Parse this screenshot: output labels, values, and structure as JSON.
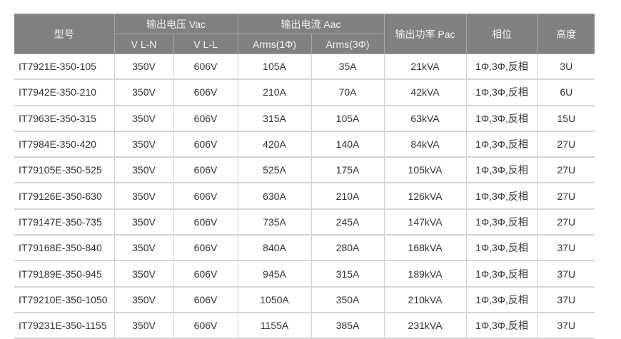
{
  "header": {
    "model": "型号",
    "voltage_group": "输出电压 Vac",
    "current_group": "输出电流 Aac",
    "power": "输出功率 Pac",
    "phase": "相位",
    "height": "高度",
    "v_ln": "V L-N",
    "v_ll": "V L-L",
    "a_1p": "Arms(1Φ)",
    "a_3p": "Arms(3Φ)"
  },
  "rows": [
    [
      "IT7921E-350-105",
      "350V",
      "606V",
      "105A",
      "35A",
      "21kVA",
      "1Φ,3Φ,反相",
      "3U"
    ],
    [
      "IT7942E-350-210",
      "350V",
      "606V",
      "210A",
      "70A",
      "42kVA",
      "1Φ,3Φ,反相",
      "6U"
    ],
    [
      "IT7963E-350-315",
      "350V",
      "606V",
      "315A",
      "105A",
      "63kVA",
      "1Φ,3Φ,反相",
      "15U"
    ],
    [
      "IT7984E-350-420",
      "350V",
      "606V",
      "420A",
      "140A",
      "84kVA",
      "1Φ,3Φ,反相",
      "27U"
    ],
    [
      "IT79105E-350-525",
      "350V",
      "606V",
      "525A",
      "175A",
      "105kVA",
      "1Φ,3Φ,反相",
      "27U"
    ],
    [
      "IT79126E-350-630",
      "350V",
      "606V",
      "630A",
      "210A",
      "126kVA",
      "1Φ,3Φ,反相",
      "27U"
    ],
    [
      "IT79147E-350-735",
      "350V",
      "606V",
      "735A",
      "245A",
      "147kVA",
      "1Φ,3Φ,反相",
      "27U"
    ],
    [
      "IT79168E-350-840",
      "350V",
      "606V",
      "840A",
      "280A",
      "168kVA",
      "1Φ,3Φ,反相",
      "37U"
    ],
    [
      "IT79189E-350-945",
      "350V",
      "606V",
      "945A",
      "315A",
      "189kVA",
      "1Φ,3Φ,反相",
      "37U"
    ],
    [
      "IT79210E-350-1050",
      "350V",
      "606V",
      "1050A",
      "350A",
      "210kVA",
      "1Φ,3Φ,反相",
      "37U"
    ],
    [
      "IT79231E-350-1155",
      "350V",
      "606V",
      "1155A",
      "385A",
      "231kVA",
      "1Φ,3Φ,反相",
      "37U"
    ]
  ],
  "colors": {
    "header_bg": "#808080",
    "header_text": "#f2f2f2",
    "body_text": "#333333"
  }
}
